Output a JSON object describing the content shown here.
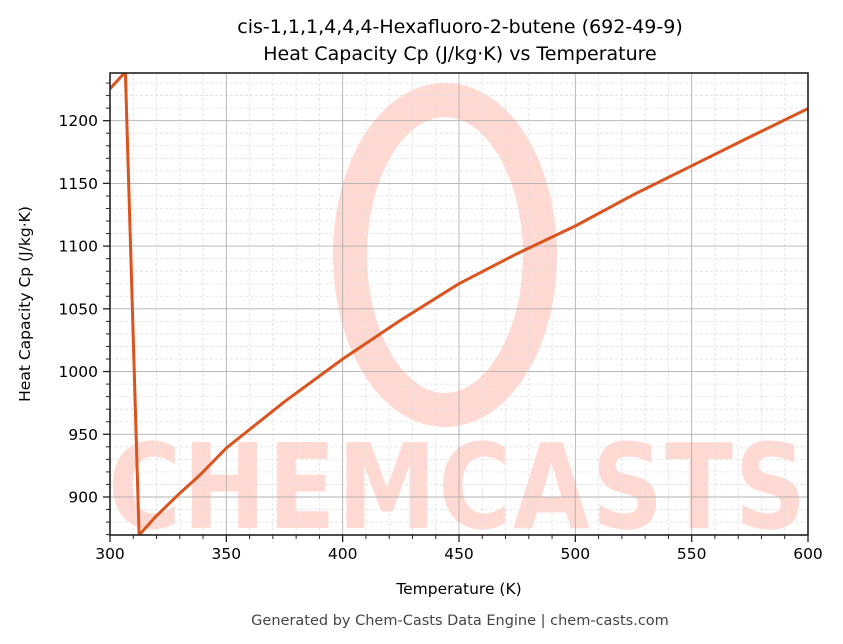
{
  "chart_data": {
    "type": "line",
    "title": "cis-1,1,1,4,4,4-Hexafluoro-2-butene (692-49-9)",
    "subtitle": "Heat Capacity Cp (J/kg·K) vs Temperature",
    "xlabel": "Temperature (K)",
    "ylabel": "Heat Capacity Cp (J/kg·K)",
    "xlim": [
      300,
      600
    ],
    "ylim": [
      869.7,
      1238
    ],
    "xticks": [
      300,
      350,
      400,
      450,
      500,
      550,
      600
    ],
    "yticks": [
      900,
      950,
      1000,
      1050,
      1100,
      1150,
      1200
    ],
    "grid": true,
    "legend": null,
    "series": [
      {
        "name": "Cp",
        "color": "#d9541e",
        "x": [
          300,
          306.2,
          306.6,
          312.5,
          320,
          330,
          338.7,
          350,
          375,
          400,
          425,
          450,
          475,
          500,
          525,
          550,
          575,
          600
        ],
        "y": [
          1225.5,
          1238,
          1238,
          869.7,
          885,
          903,
          917.5,
          939,
          976,
          1010,
          1041,
          1070,
          1094,
          1116,
          1141,
          1164,
          1187,
          1209.6
        ]
      }
    ]
  },
  "footer": "Generated by Chem-Casts Data Engine | chem-casts.com",
  "watermark": "CHEMCASTS",
  "colors": {
    "line": "#d9541e",
    "watermark": "#ffd9d2",
    "grid_major": "#b0b0b0",
    "grid_minor": "#e0e0e0"
  }
}
